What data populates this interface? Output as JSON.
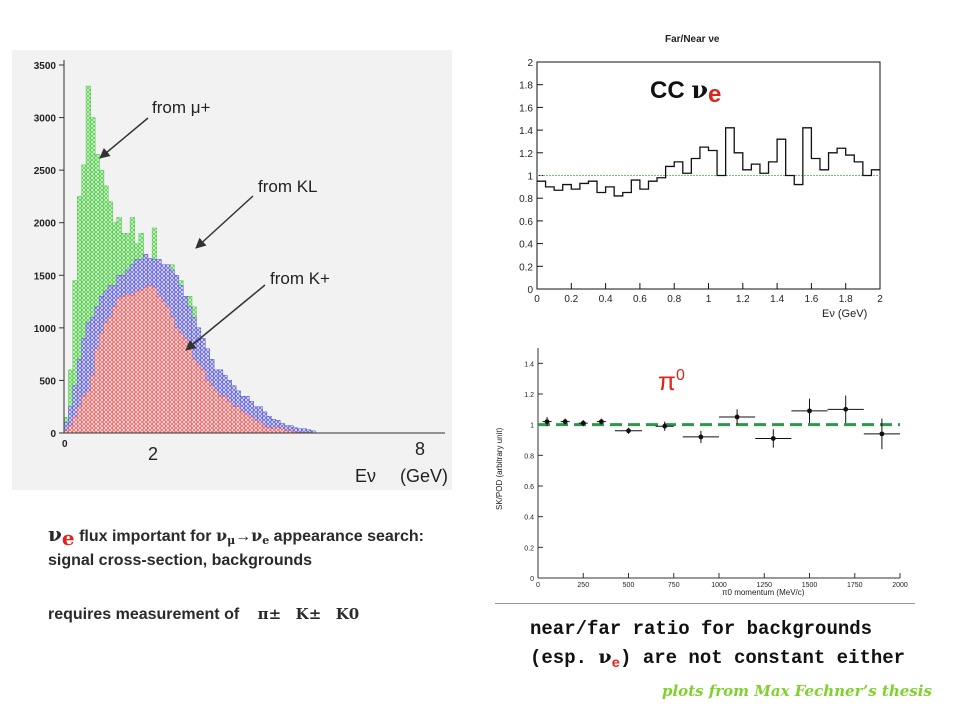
{
  "chart_data": [
    {
      "type": "histogram",
      "xlabel": "Eν",
      "xunit": "(GeV)",
      "xticks": [
        "0",
        "2",
        "8"
      ],
      "xlim": [
        0,
        8
      ],
      "ylim": [
        0,
        3500
      ],
      "yticks": [
        "0",
        "500",
        "1000",
        "1500",
        "2000",
        "2500",
        "3000",
        "3500"
      ],
      "grid": false,
      "annotations": [
        "from μ+",
        "from KL",
        "from K+"
      ],
      "bin_width_gev": 0.0968,
      "series": [
        {
          "name": "from K+",
          "color": "#f08080",
          "values": [
            20,
            70,
            150,
            250,
            350,
            400,
            550,
            800,
            950,
            1050,
            1100,
            1200,
            1280,
            1300,
            1320,
            1310,
            1350,
            1360,
            1380,
            1400,
            1380,
            1300,
            1250,
            1200,
            1100,
            1000,
            950,
            900,
            800,
            700,
            650,
            600,
            500,
            450,
            400,
            350,
            350,
            300,
            250,
            250,
            200,
            180,
            150,
            120,
            100,
            60,
            50,
            40,
            50,
            40,
            20,
            20,
            10,
            5,
            5,
            5,
            0
          ]
        },
        {
          "name": "from KL",
          "color": "#7b7bd9",
          "values": [
            100,
            250,
            450,
            700,
            900,
            1050,
            1100,
            1200,
            1300,
            1350,
            1400,
            1400,
            1500,
            1500,
            1550,
            1600,
            1650,
            1650,
            1700,
            1660,
            1650,
            1650,
            1600,
            1600,
            1550,
            1500,
            1400,
            1300,
            1200,
            1100,
            1000,
            900,
            800,
            700,
            600,
            600,
            550,
            500,
            450,
            400,
            350,
            350,
            300,
            250,
            250,
            200,
            160,
            130,
            120,
            90,
            70,
            70,
            50,
            40,
            40,
            30,
            20
          ]
        },
        {
          "name": "from μ+",
          "color": "#7ddf7d",
          "values": [
            150,
            600,
            1450,
            2250,
            2550,
            3300,
            3000,
            2650,
            2500,
            2350,
            2200,
            2000,
            2050,
            1900,
            1900,
            2050,
            1800,
            1900,
            1600,
            1600,
            1950,
            1650,
            1550,
            1600,
            1600,
            1500,
            1450,
            1300,
            1300,
            1200,
            1000,
            900,
            800,
            700,
            600,
            600,
            550,
            500,
            450,
            400,
            350,
            350,
            300,
            250,
            250,
            200,
            160,
            130,
            120,
            90,
            70,
            70,
            50,
            40,
            40,
            30,
            20
          ]
        }
      ]
    },
    {
      "type": "histogram",
      "title": "Far/Near νe",
      "annotation": "CC νe",
      "xlabel": "Eν (GeV)",
      "xlim": [
        0,
        2
      ],
      "ylim": [
        0,
        2
      ],
      "xticks": [
        "0",
        "0.2",
        "0.4",
        "0.6",
        "0.8",
        "1",
        "1.2",
        "1.4",
        "1.6",
        "1.8",
        "2"
      ],
      "yticks": [
        "0",
        "0.2",
        "0.4",
        "0.6",
        "0.8",
        "1",
        "1.2",
        "1.4",
        "1.6",
        "1.8",
        "2"
      ],
      "reference_line": 1,
      "bin_width": 0.05,
      "values": [
        0.95,
        0.9,
        0.87,
        0.92,
        0.88,
        0.93,
        0.95,
        0.85,
        0.9,
        0.82,
        0.85,
        0.96,
        0.88,
        0.95,
        0.98,
        1.08,
        1.12,
        1.02,
        1.15,
        1.25,
        1.22,
        1.0,
        1.42,
        1.2,
        1.05,
        1.1,
        1.02,
        1.12,
        1.32,
        1.0,
        0.92,
        1.42,
        1.15,
        1.05,
        1.2,
        1.24,
        1.18,
        1.12,
        1.0,
        1.05
      ]
    },
    {
      "type": "scatter",
      "annotation": "π0",
      "ylabel": "SK/POD (arbitrary unit)",
      "xlabel": "π0 momentum (MeV/c)",
      "xlim": [
        0,
        2000
      ],
      "ylim": [
        0,
        1.5
      ],
      "xticks": [
        "0",
        "250",
        "500",
        "750",
        "1000",
        "1250",
        "1500",
        "1750",
        "2000"
      ],
      "yticks": [
        "0",
        "0.2",
        "0.4",
        "0.6",
        "0.8",
        "1",
        "1.2",
        "1.4"
      ],
      "reference_line": 1,
      "points": [
        {
          "x": 50,
          "y": 1.02,
          "xerr": 25,
          "yerr": 0.03
        },
        {
          "x": 150,
          "y": 1.02,
          "xerr": 25,
          "yerr": 0.02
        },
        {
          "x": 250,
          "y": 1.01,
          "xerr": 25,
          "yerr": 0.02
        },
        {
          "x": 350,
          "y": 1.02,
          "xerr": 25,
          "yerr": 0.02
        },
        {
          "x": 500,
          "y": 0.96,
          "xerr": 75,
          "yerr": 0.02
        },
        {
          "x": 700,
          "y": 0.99,
          "xerr": 50,
          "yerr": 0.03
        },
        {
          "x": 900,
          "y": 0.92,
          "xerr": 100,
          "yerr": 0.04
        },
        {
          "x": 1100,
          "y": 1.05,
          "xerr": 100,
          "yerr": 0.05
        },
        {
          "x": 1300,
          "y": 0.91,
          "xerr": 100,
          "yerr": 0.06
        },
        {
          "x": 1500,
          "y": 1.09,
          "xerr": 100,
          "yerr": 0.08
        },
        {
          "x": 1700,
          "y": 1.1,
          "xerr": 100,
          "yerr": 0.09
        },
        {
          "x": 1900,
          "y": 0.94,
          "xerr": 100,
          "yerr": 0.1
        }
      ]
    }
  ],
  "text": {
    "line1_nu": "ν",
    "line1_e": "e",
    "line1_mid": " flux important for ",
    "line1_numu": "ν",
    "line1_mu": "μ",
    "line1_arrow": "→",
    "line1_nue": "ν",
    "line1_e2": "e",
    "line1_end": " appearance search:",
    "line2": "signal cross-section, backgrounds",
    "line3": "requires measurement of",
    "line3_pi": "π±",
    "line3_k": "K±",
    "line3_k0": "K0",
    "ratio_line1": "near/far ratio for backgrounds",
    "ratio_line2a": "(esp. ",
    "ratio_line2_nu": "ν",
    "ratio_line2_e": "e",
    "ratio_line2b": ") are not constant either",
    "credit": "plots from Max Fechner’s thesis"
  }
}
